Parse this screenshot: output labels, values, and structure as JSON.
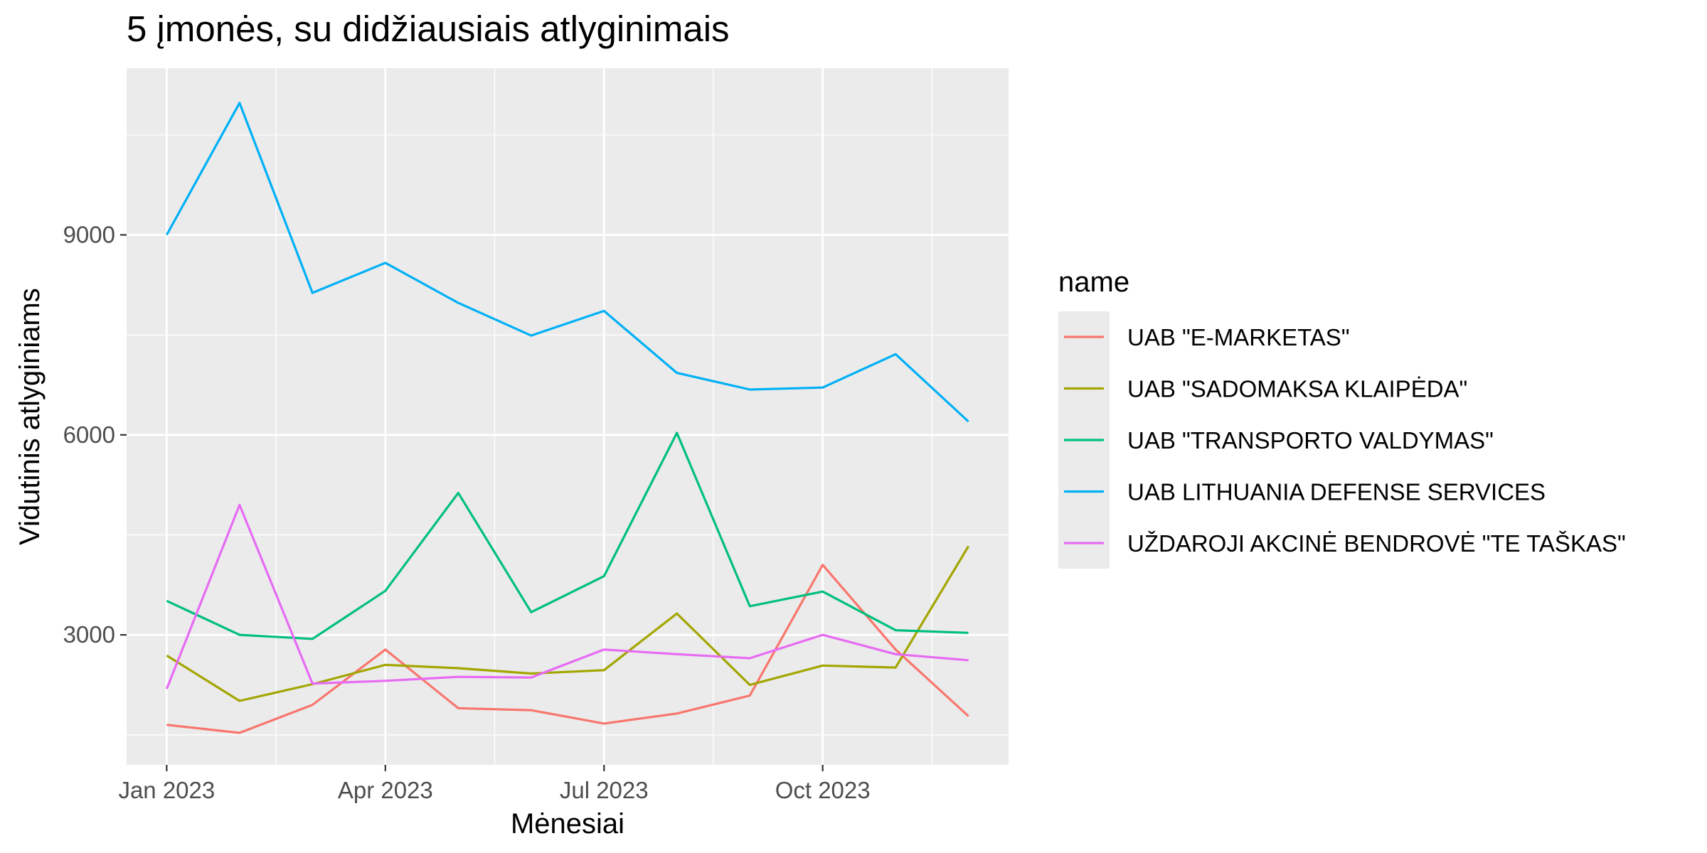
{
  "chart_data": {
    "type": "line",
    "title": "5 įmonės, su didžiausiais atlyginimais",
    "xlabel": "Mėnesiai",
    "ylabel": "Vidutinis atlyginiams",
    "x": [
      "2023-01",
      "2023-02",
      "2023-03",
      "2023-04",
      "2023-05",
      "2023-06",
      "2023-07",
      "2023-08",
      "2023-09",
      "2023-10",
      "2023-11",
      "2023-12"
    ],
    "x_ticks": [
      {
        "value": "2023-01",
        "label": "Jan 2023"
      },
      {
        "value": "2023-04",
        "label": "Apr 2023"
      },
      {
        "value": "2023-07",
        "label": "Jul 2023"
      },
      {
        "value": "2023-10",
        "label": "Oct 2023"
      }
    ],
    "ylim": [
      1050,
      11500
    ],
    "y_ticks": [
      3000,
      6000,
      9000
    ],
    "grid": true,
    "legend": {
      "title": "name",
      "position": "right"
    },
    "series": [
      {
        "name": "UAB \"E-MARKETAS\"",
        "color": "#F8766D",
        "values": [
          1650,
          1530,
          1950,
          2780,
          1900,
          1870,
          1670,
          1820,
          2090,
          4050,
          2780,
          1780
        ]
      },
      {
        "name": "UAB \"SADOMAKSA KLAIPĖDA\"",
        "color": "#A3A500",
        "values": [
          2690,
          2010,
          2260,
          2550,
          2500,
          2420,
          2470,
          3320,
          2250,
          2540,
          2510,
          4330
        ]
      },
      {
        "name": "UAB \"TRANSPORTO VALDYMAS\"",
        "color": "#00BF7D",
        "values": [
          3510,
          3000,
          2940,
          3660,
          5130,
          3340,
          3880,
          6030,
          3430,
          3650,
          3070,
          3030
        ]
      },
      {
        "name": "UAB LITHUANIA DEFENSE SERVICES",
        "color": "#00B0F6",
        "values": [
          9000,
          10980,
          8130,
          8580,
          7980,
          7490,
          7860,
          6930,
          6680,
          6710,
          7210,
          6200
        ]
      },
      {
        "name": "UŽDAROJI AKCINĖ BENDROVĖ \"TE TAŠKAS\"",
        "color": "#E76BF3",
        "values": [
          2190,
          4950,
          2270,
          2310,
          2370,
          2360,
          2780,
          2710,
          2650,
          3000,
          2710,
          2620
        ]
      }
    ]
  }
}
